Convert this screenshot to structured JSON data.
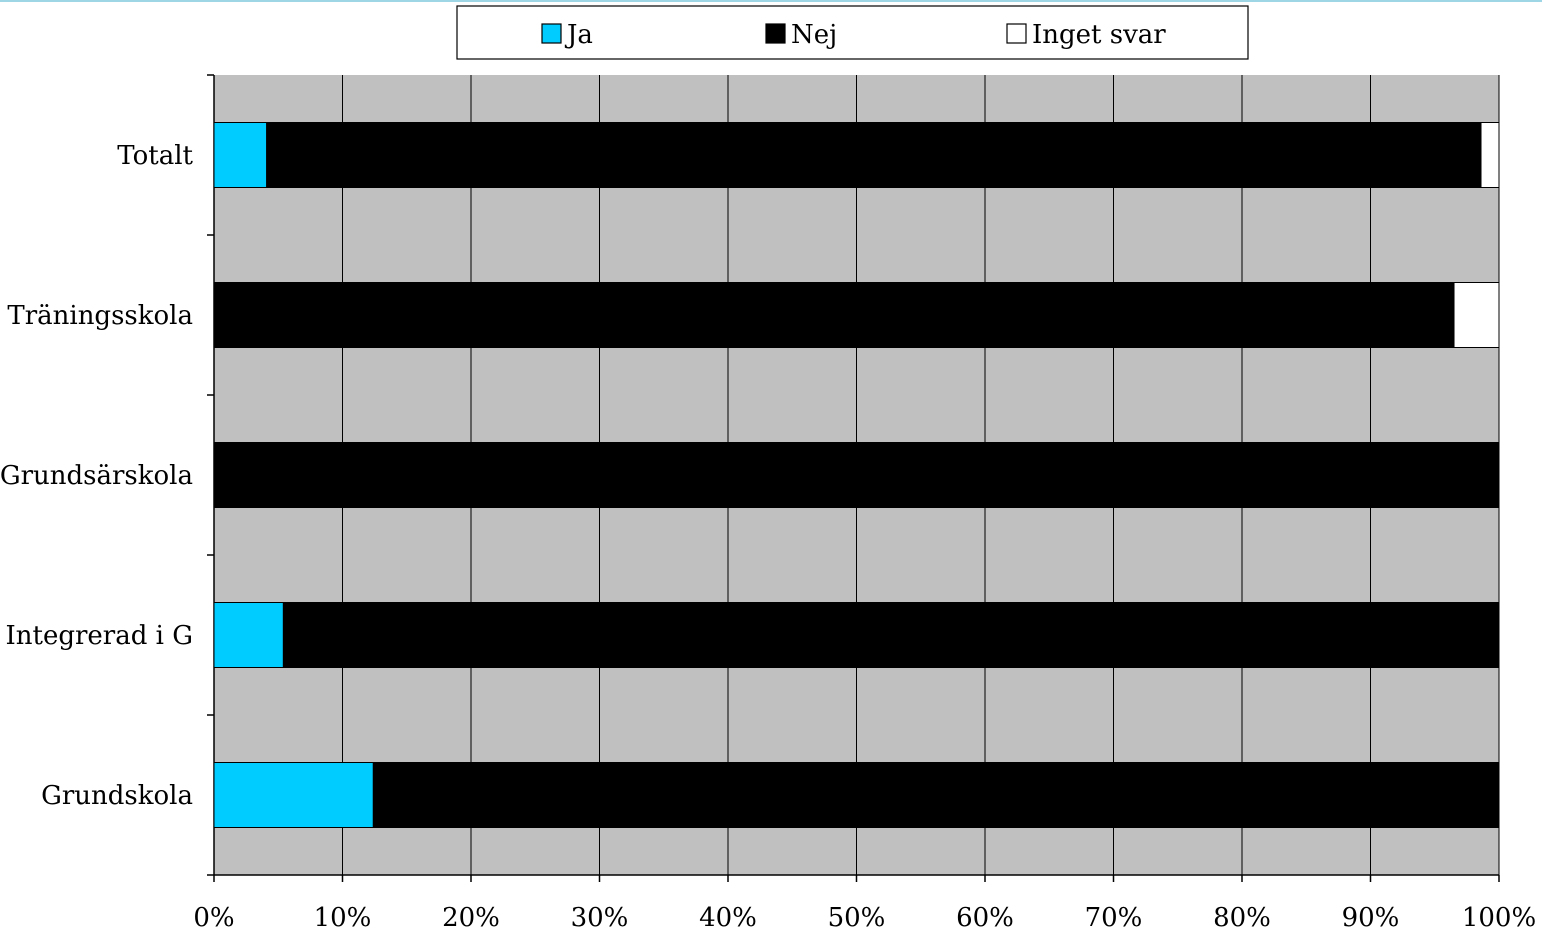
{
  "chart_data": {
    "type": "bar",
    "orientation": "horizontal",
    "stacked": "percent",
    "categories": [
      "Totalt",
      "Träningsskola",
      "Grundsärskola",
      "Integrerad i G",
      "Grundskola"
    ],
    "series": [
      {
        "name": "Ja",
        "color": "#00CCFF",
        "values": [
          4.1,
          0,
          0,
          5.4,
          12.4
        ]
      },
      {
        "name": "Nej",
        "color": "#000000",
        "values": [
          94.5,
          96.5,
          100,
          94.6,
          87.6
        ]
      },
      {
        "name": "Inget svar",
        "color": "#FFFFFF",
        "values": [
          1.4,
          3.5,
          0,
          0,
          0
        ]
      }
    ],
    "xlim": [
      0,
      100
    ],
    "xticks": [
      "0%",
      "10%",
      "20%",
      "30%",
      "40%",
      "50%",
      "60%",
      "70%",
      "80%",
      "90%",
      "100%"
    ],
    "grid": "vertical",
    "plot_background": "#C0C0C0",
    "legend_position": "top"
  }
}
